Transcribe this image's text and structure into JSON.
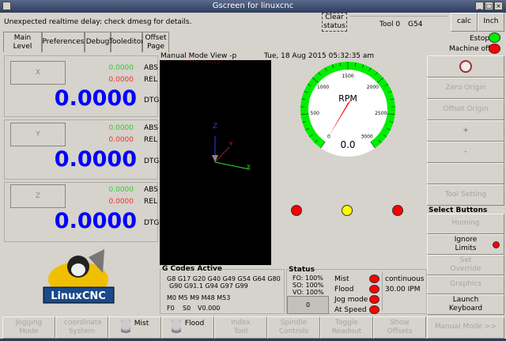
{
  "window": {
    "title": "Gscreen for linuxcnc"
  },
  "statusbar": {
    "message": "Unexpected realtime delay: check dmesg for details.",
    "clear_label": "Clear status",
    "tool": "Tool 0",
    "coord": "G54",
    "calc": "calc",
    "units": "Inch"
  },
  "tabs": [
    {
      "label": "Main Level"
    },
    {
      "label": "Preferences"
    },
    {
      "label": "Debug"
    },
    {
      "label": "Tooleditor"
    },
    {
      "label": "Offset Page"
    }
  ],
  "axes": [
    {
      "name": "X",
      "abs": "0.0000",
      "rel": "0.0000",
      "dtg": "0.0000"
    },
    {
      "name": "Y",
      "abs": "0.0000",
      "rel": "0.0000",
      "dtg": "0.0000"
    },
    {
      "name": "Z",
      "abs": "0.0000",
      "rel": "0.0000",
      "dtg": "0.0000"
    }
  ],
  "labels": {
    "abs": "ABS",
    "rel": "REL",
    "dtg": "DTG"
  },
  "logo": "LinuxCNC",
  "graphics": {
    "mode": "Manual Mode",
    "view": "View -p",
    "datetime": "Tue, 18 Aug 2015   05:32:35 am",
    "axis_z": "Z",
    "axis_x": "X",
    "axis_y": "Y"
  },
  "gauge": {
    "label": "RPM",
    "value": "0.0",
    "ticks": [
      "0",
      "500",
      "1000",
      "1500",
      "2000",
      "2500",
      "3000"
    ],
    "colors": {
      "arc": "#00ee00",
      "needle": "#ff0000"
    }
  },
  "indicator_lights": [
    "#ff0000",
    "#ffff00",
    "#ff0000"
  ],
  "gcodes": {
    "title": "G Codes Active",
    "line1": "G8 G17 G20 G40 G49 G54 G64 G80",
    "line2": "G90 G91.1 G94 G97 G99",
    "mcodes": "M0 M5 M9 M48 M53",
    "feed": "F0",
    "speed": "S0",
    "velocity": "V0.000"
  },
  "status": {
    "title": "Status",
    "fo": "FO: 100%",
    "so": "SO: 100%",
    "vo": "VO: 100%",
    "counter": "0",
    "mist": "Mist",
    "flood": "Flood",
    "jog_mode": "Jog mode",
    "at_speed": "At Speed",
    "jog_type": "continuous",
    "jog_rate": "30.00 IPM"
  },
  "right": {
    "estop": "Estop",
    "machine": "Machine off",
    "zero_origin": "Zero Origin",
    "offset_origin": "Offset Origin",
    "plus": "+",
    "minus": "-",
    "tool_setting": "Tool Setting",
    "select_buttons": "Select Buttons",
    "homing": "Homing",
    "ignore_limits": "Ignore Limits",
    "set_override": "Set Override",
    "graphics": "Graphics",
    "launch_keyboard": "Launch Keyboard",
    "manual_mode": "Manual Mode >>"
  },
  "bottom": [
    {
      "label": "Jogging Mode"
    },
    {
      "label": "coordinate System"
    },
    {
      "label": "Mist"
    },
    {
      "label": "Flood"
    },
    {
      "label": "Index Tool"
    },
    {
      "label": "Spindle Controls"
    },
    {
      "label": "Toggle Readout"
    },
    {
      "label": "Show Offsets"
    }
  ]
}
